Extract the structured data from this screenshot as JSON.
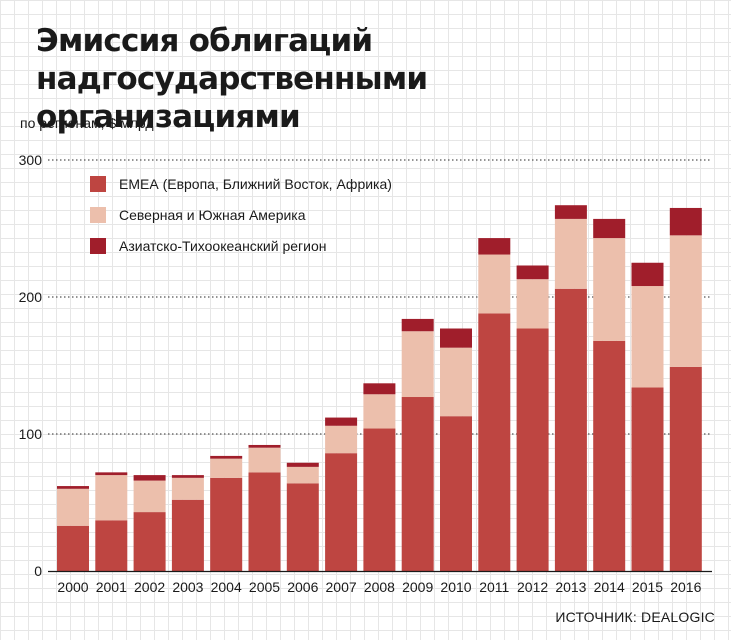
{
  "header": {
    "title": "Эмиссия облигаций надгосударственными организациями",
    "units": "по регионам, $ млрд",
    "source": "ИСТОЧНИК: DEALOGIC"
  },
  "colors": {
    "emea": "#be4541",
    "americas": "#ecbfac",
    "apac": "#a01e2b",
    "gridline": "#555555",
    "axis": "#1a1a1a"
  },
  "chart_data": {
    "type": "bar",
    "stacked": true,
    "categories": [
      "2000",
      "2001",
      "2002",
      "2003",
      "2004",
      "2005",
      "2006",
      "2007",
      "2008",
      "2009",
      "2010",
      "2011",
      "2012",
      "2013",
      "2014",
      "2015",
      "2016"
    ],
    "series": [
      {
        "name": "ЕМЕА (Европа, Ближний Восток, Африка)",
        "values": [
          33,
          37,
          43,
          52,
          68,
          72,
          64,
          86,
          104,
          127,
          113,
          188,
          177,
          206,
          168,
          134,
          149
        ]
      },
      {
        "name": "Северная и Южная Америка",
        "values": [
          27,
          33,
          23,
          16,
          14,
          18,
          12,
          20,
          25,
          48,
          50,
          43,
          36,
          51,
          75,
          74,
          96
        ]
      },
      {
        "name": "Азиатско-Тихоокеанский регион",
        "values": [
          2,
          2,
          4,
          2,
          2,
          2,
          3,
          6,
          8,
          9,
          14,
          12,
          10,
          10,
          14,
          17,
          20
        ]
      }
    ],
    "ylim": [
      0,
      300
    ],
    "yticks": [
      0,
      100,
      200,
      300
    ],
    "grid": true,
    "legend_position": "top-left"
  }
}
